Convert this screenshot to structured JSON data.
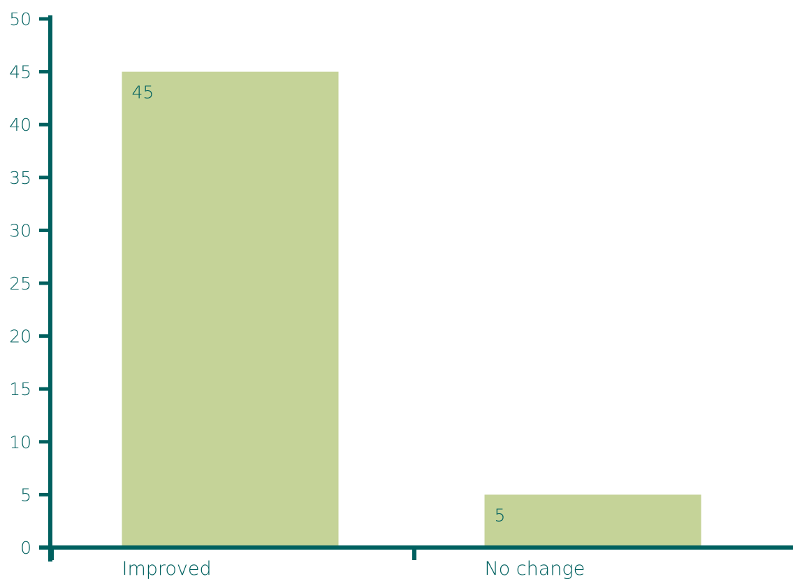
{
  "chart_data": {
    "type": "bar",
    "title": "",
    "xlabel": "",
    "ylabel": "",
    "categories": [
      "Improved",
      "No change"
    ],
    "values": [
      45,
      5
    ],
    "data_labels": [
      "45",
      "5"
    ],
    "ylim": [
      0,
      50
    ],
    "yticks": [
      0,
      5,
      10,
      15,
      20,
      25,
      30,
      35,
      40,
      45,
      50
    ],
    "ytick_labels": [
      "0",
      "5",
      "10",
      "15",
      "20",
      "25",
      "30",
      "35",
      "40",
      "45",
      "50"
    ],
    "grid": false,
    "legend": "none",
    "colors": {
      "bar": "#c5d398",
      "axis": "#00605f",
      "text": "#00605f"
    }
  }
}
